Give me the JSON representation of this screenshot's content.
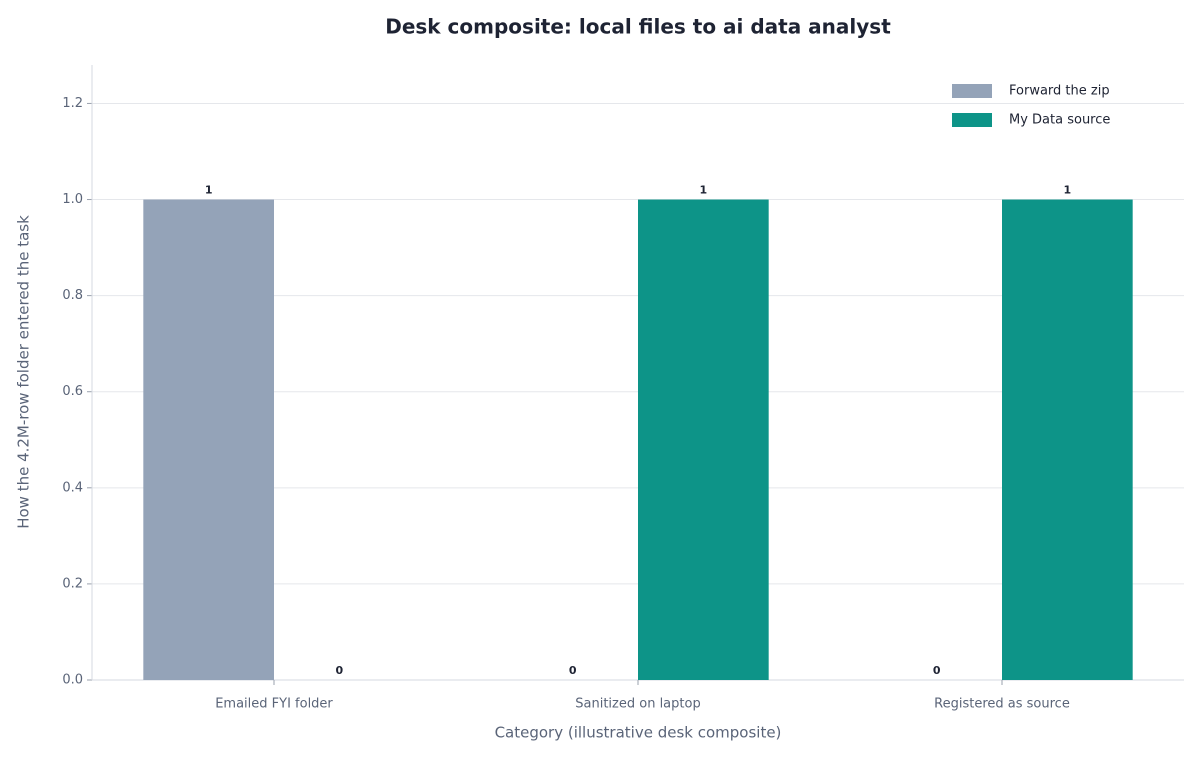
{
  "chart_data": {
    "type": "bar",
    "title": "Desk composite: local files to ai data analyst",
    "x_label": "Category (illustrative desk composite)",
    "y_label": "How the 4.2M-row folder entered the task",
    "categories": [
      "Emailed FYI folder",
      "Sanitized on laptop",
      "Registered as source"
    ],
    "series": [
      {
        "name": "Forward the zip",
        "color": "#94a3b8",
        "values": [
          1,
          0,
          0
        ]
      },
      {
        "name": "My Data source",
        "color": "#0d9488",
        "values": [
          0,
          1,
          1
        ]
      }
    ],
    "ylim": [
      0,
      1.28
    ],
    "yticks": [
      {
        "value": 0,
        "label": "0.0"
      },
      {
        "value": 0.2,
        "label": "0.2"
      },
      {
        "value": 0.4,
        "label": "0.4"
      },
      {
        "value": 0.6,
        "label": "0.6"
      },
      {
        "value": 0.8,
        "label": "0.8"
      },
      {
        "value": 1,
        "label": "1.0"
      },
      {
        "value": 1.2,
        "label": "1.2"
      }
    ],
    "grid": true,
    "legend": "upper right"
  }
}
